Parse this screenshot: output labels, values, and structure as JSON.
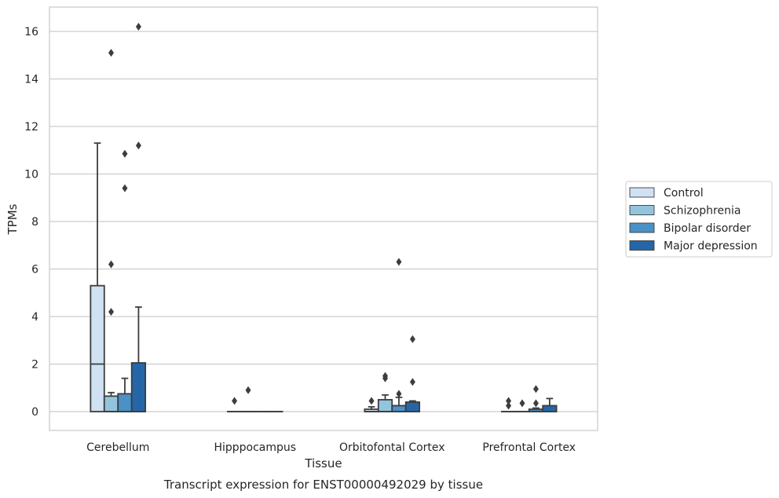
{
  "chart_data": {
    "type": "box",
    "title": "Transcript expression for ENST00000492029 by tissue",
    "xlabel": "Tissue",
    "ylabel": "TPMs",
    "ylim": [
      -0.8,
      17
    ],
    "yticks": [
      "0",
      "2",
      "4",
      "6",
      "8",
      "10",
      "12",
      "14",
      "16"
    ],
    "grid": true,
    "legend_position": "right",
    "categories": [
      "Cerebellum",
      "Hipppocampus",
      "Orbitofontal Cortex",
      "Prefrontal Cortex"
    ],
    "series": [
      {
        "name": "Control",
        "color": "#cfe1f2",
        "boxes": [
          {
            "q1": 0,
            "median": 2.0,
            "q3": 5.3,
            "whisker_low": 0,
            "whisker_high": 11.3,
            "outliers": []
          },
          {
            "q1": 0,
            "median": 0,
            "q3": 0,
            "whisker_low": 0,
            "whisker_high": 0,
            "outliers": [
              0.45
            ]
          },
          {
            "q1": 0,
            "median": 0,
            "q3": 0.1,
            "whisker_low": 0,
            "whisker_high": 0.2,
            "outliers": [
              0.45
            ]
          },
          {
            "q1": 0,
            "median": 0,
            "q3": 0,
            "whisker_low": 0,
            "whisker_high": 0,
            "outliers": [
              0.25,
              0.45
            ]
          }
        ]
      },
      {
        "name": "Schizophrenia",
        "color": "#93c4de",
        "boxes": [
          {
            "q1": 0,
            "median": 0,
            "q3": 0.65,
            "whisker_low": 0,
            "whisker_high": 0.8,
            "outliers": [
              4.2,
              6.2,
              15.1
            ]
          },
          {
            "q1": 0,
            "median": 0,
            "q3": 0,
            "whisker_low": 0,
            "whisker_high": 0,
            "outliers": [
              0.9
            ]
          },
          {
            "q1": 0,
            "median": 0,
            "q3": 0.5,
            "whisker_low": 0,
            "whisker_high": 0.7,
            "outliers": [
              1.4,
              1.5
            ]
          },
          {
            "q1": 0,
            "median": 0,
            "q3": 0,
            "whisker_low": 0,
            "whisker_high": 0,
            "outliers": [
              0.35
            ]
          }
        ]
      },
      {
        "name": "Bipolar disorder",
        "color": "#4a91c6",
        "boxes": [
          {
            "q1": 0,
            "median": 0,
            "q3": 0.75,
            "whisker_low": 0,
            "whisker_high": 1.4,
            "outliers": [
              9.4,
              10.85
            ]
          },
          {
            "q1": 0,
            "median": 0,
            "q3": 0,
            "whisker_low": 0,
            "whisker_high": 0,
            "outliers": []
          },
          {
            "q1": 0,
            "median": 0,
            "q3": 0.25,
            "whisker_low": 0,
            "whisker_high": 0.6,
            "outliers": [
              0.75,
              6.3
            ]
          },
          {
            "q1": 0,
            "median": 0,
            "q3": 0.1,
            "whisker_low": 0,
            "whisker_high": 0.15,
            "outliers": [
              0.35,
              0.95
            ]
          }
        ]
      },
      {
        "name": "Major depression",
        "color": "#2566a8",
        "boxes": [
          {
            "q1": 0,
            "median": 0,
            "q3": 2.05,
            "whisker_low": 0,
            "whisker_high": 4.4,
            "outliers": [
              11.2,
              16.2
            ]
          },
          {
            "q1": 0,
            "median": 0,
            "q3": 0,
            "whisker_low": 0,
            "whisker_high": 0,
            "outliers": []
          },
          {
            "q1": 0,
            "median": 0,
            "q3": 0.4,
            "whisker_low": 0,
            "whisker_high": 0.45,
            "outliers": [
              1.25,
              3.05
            ]
          },
          {
            "q1": 0,
            "median": 0,
            "q3": 0.25,
            "whisker_low": 0,
            "whisker_high": 0.55,
            "outliers": []
          }
        ]
      }
    ]
  }
}
